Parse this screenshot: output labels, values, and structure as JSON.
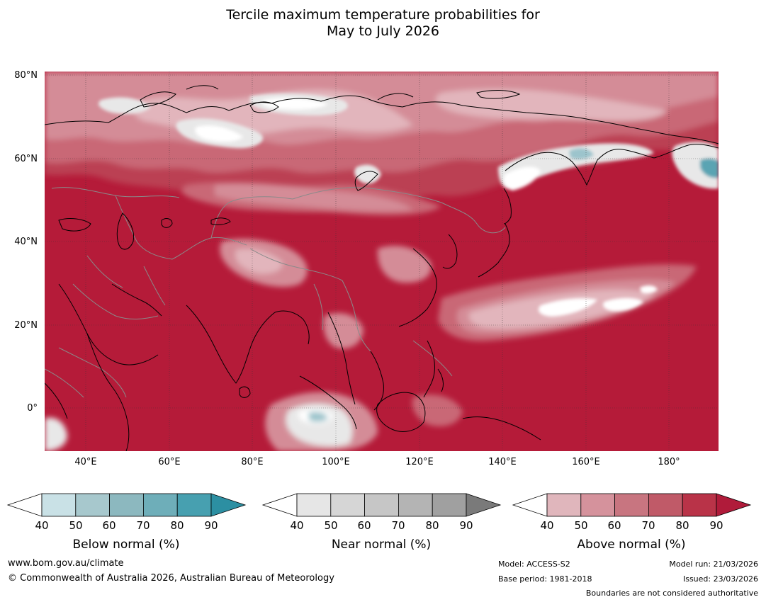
{
  "title": {
    "line1": "Tercile maximum temperature probabilities for",
    "line2": "May to July 2026"
  },
  "map": {
    "lat_labels": [
      "80°N",
      "60°N",
      "40°N",
      "20°N",
      "0°"
    ],
    "lon_labels": [
      "40°E",
      "60°E",
      "80°E",
      "100°E",
      "120°E",
      "140°E",
      "160°E",
      "180°"
    ],
    "extent": {
      "lon_min": 30,
      "lon_max": 192,
      "lat_min": -10,
      "lat_max": 81
    }
  },
  "colorbars": [
    {
      "name": "below",
      "title": "Below normal (%)",
      "ticks": [
        "40",
        "50",
        "60",
        "70",
        "80",
        "90"
      ],
      "colors": [
        "#ffffff",
        "#c9e1e6",
        "#a7c8cd",
        "#8cb8bf",
        "#6eaeb9",
        "#47a0b0",
        "#2c8fa2"
      ]
    },
    {
      "name": "near",
      "title": "Near normal (%)",
      "ticks": [
        "40",
        "50",
        "60",
        "70",
        "80",
        "90"
      ],
      "colors": [
        "#ffffff",
        "#e6e6e6",
        "#d6d6d6",
        "#c6c6c6",
        "#b4b4b4",
        "#a0a0a0",
        "#7a7a7a"
      ]
    },
    {
      "name": "above",
      "title": "Above normal (%)",
      "ticks": [
        "40",
        "50",
        "60",
        "70",
        "80",
        "90"
      ],
      "colors": [
        "#ffffff",
        "#e0b6bc",
        "#d5929c",
        "#c87580",
        "#c05a68",
        "#b93348",
        "#b01b3a"
      ]
    }
  ],
  "palette": {
    "above_strong": "#b51b39",
    "above_high": "#bb3f52",
    "above_mid": "#c96876",
    "above_low": "#d48c97",
    "above_faint": "#e2b5bc",
    "near_faint": "#e8e8e8",
    "below_low": "#9cc4cc",
    "below_mid": "#5aa4b3"
  },
  "footer": {
    "website": "www.bom.gov.au/climate",
    "copyright": "© Commonwealth of Australia 2026, Australian Bureau of Meteorology",
    "model": "Model: ACCESS-S2",
    "base_period": "Base period: 1981-2018",
    "model_run": "Model run: 21/03/2026",
    "issued": "Issued: 23/03/2026",
    "disclaimer": "Boundaries are not considered authoritative"
  }
}
